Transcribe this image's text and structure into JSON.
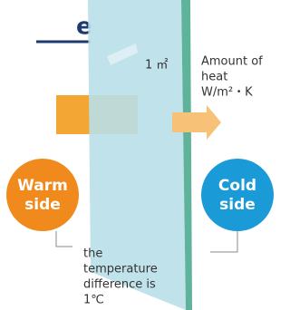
{
  "header": {
    "title": "e"
  },
  "glass": {
    "area": "1 ㎡"
  },
  "heat_label": [
    "Amount of",
    "heat",
    "W/m²・K"
  ],
  "warm": [
    "Warm",
    "side"
  ],
  "cold": [
    "Cold",
    "side"
  ],
  "note": [
    "the",
    "temperature",
    "difference is",
    "1℃"
  ]
}
